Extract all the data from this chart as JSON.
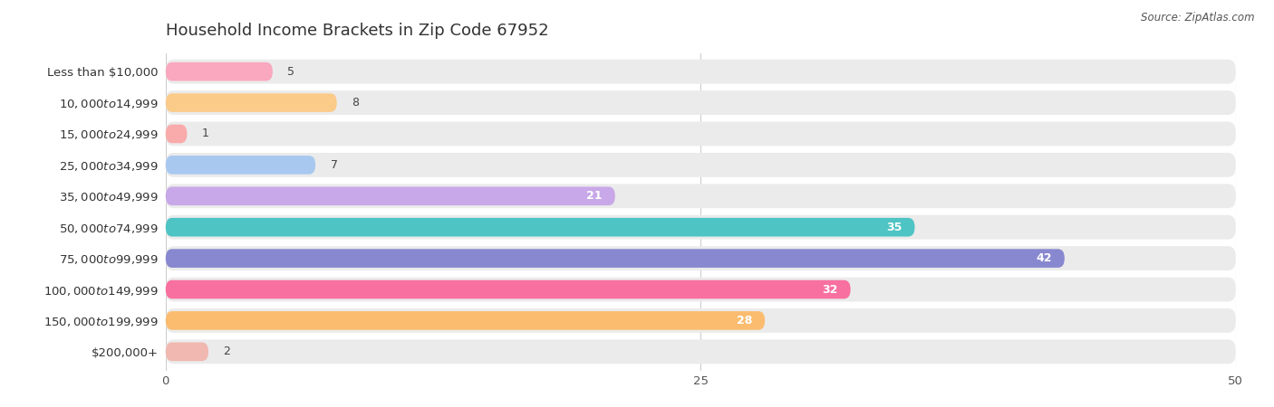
{
  "title": "Household Income Brackets in Zip Code 67952",
  "source": "Source: ZipAtlas.com",
  "categories": [
    "Less than $10,000",
    "$10,000 to $14,999",
    "$15,000 to $24,999",
    "$25,000 to $34,999",
    "$35,000 to $49,999",
    "$50,000 to $74,999",
    "$75,000 to $99,999",
    "$100,000 to $149,999",
    "$150,000 to $199,999",
    "$200,000+"
  ],
  "values": [
    5,
    8,
    1,
    7,
    21,
    35,
    42,
    32,
    28,
    2
  ],
  "bar_colors": [
    "#F9A8BF",
    "#FBCB8A",
    "#F9AAAA",
    "#A8C8F0",
    "#C8A8E8",
    "#4EC4C4",
    "#8888D0",
    "#F870A0",
    "#FBBC70",
    "#F0B8B0"
  ],
  "xlim_max": 50,
  "xticks": [
    0,
    25,
    50
  ],
  "bg_color": "#ffffff",
  "bar_bg_color": "#ebebeb",
  "title_fontsize": 13,
  "label_fontsize": 9.5,
  "value_fontsize": 9,
  "value_threshold_inside": 20
}
